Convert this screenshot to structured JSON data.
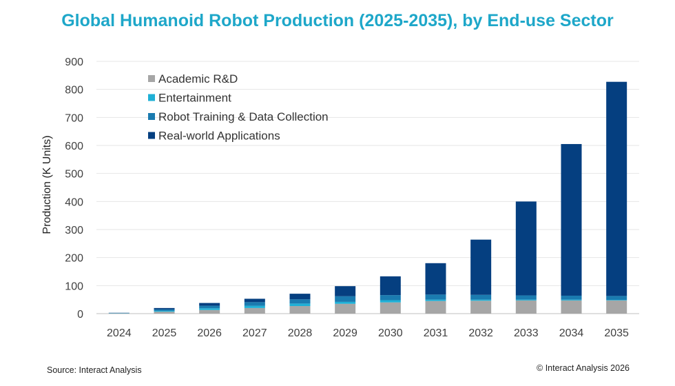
{
  "chart_data": {
    "type": "bar",
    "stacked": true,
    "title": "Global Humanoid Robot Production (2025-2035), by End-use Sector",
    "xlabel": "",
    "ylabel": "Production (K Units)",
    "ylim": [
      0,
      900
    ],
    "yticks": [
      0,
      100,
      200,
      300,
      400,
      500,
      600,
      700,
      800,
      900
    ],
    "grid": true,
    "legend_position": "top-left",
    "categories": [
      "2024",
      "2025",
      "2026",
      "2027",
      "2028",
      "2029",
      "2030",
      "2031",
      "2032",
      "2033",
      "2034",
      "2035"
    ],
    "series": [
      {
        "name": "Academic R&D",
        "color": "#a6a6a6",
        "values": [
          1,
          7,
          13,
          20,
          27,
          35,
          40,
          45,
          46,
          47,
          47,
          47
        ]
      },
      {
        "name": "Entertainment",
        "color": "#1fb0d6",
        "values": [
          0.5,
          3,
          6,
          8,
          9,
          7,
          8,
          5,
          4,
          3,
          3,
          2
        ]
      },
      {
        "name": "Robot Training & Data Collection",
        "color": "#1a7bb0",
        "values": [
          1,
          5,
          9,
          13,
          15,
          20,
          18,
          18,
          17,
          15,
          14,
          14
        ]
      },
      {
        "name": "Real-world Applications",
        "color": "#053f80",
        "values": [
          0.5,
          5,
          10,
          12,
          20,
          36,
          67,
          112,
          197,
          335,
          541,
          764
        ]
      }
    ]
  },
  "footer": {
    "source": "Source: Interact Analysis",
    "copyright": "© Interact Analysis 2026"
  }
}
